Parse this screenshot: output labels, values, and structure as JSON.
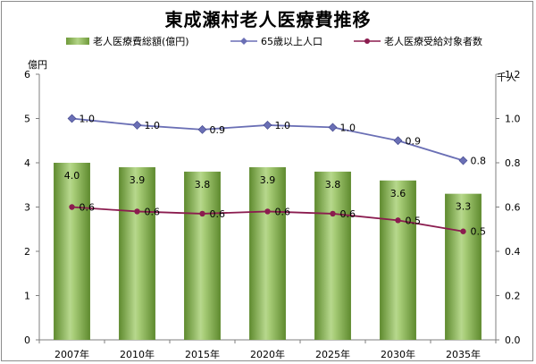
{
  "chart_data": {
    "type": "bar",
    "title": "東成瀬村老人医療費推移",
    "categories": [
      "2007年",
      "2010年",
      "2015年",
      "2020年",
      "2025年",
      "2030年",
      "2035年"
    ],
    "left_axis": {
      "unit_label": "億円",
      "ylim": [
        0,
        6
      ],
      "ticks": [
        "0",
        "1",
        "2",
        "3",
        "4",
        "5",
        "6"
      ]
    },
    "right_axis": {
      "unit_label": "千人",
      "ylim": [
        0,
        1.2
      ],
      "ticks": [
        "0.0",
        "0.2",
        "0.4",
        "0.6",
        "0.8",
        "1.0",
        "1.2"
      ]
    },
    "series": [
      {
        "name": "老人医療費総額(億円)",
        "kind": "bar",
        "axis": "left",
        "color": "#8fb858",
        "values": [
          4.0,
          3.9,
          3.8,
          3.9,
          3.8,
          3.6,
          3.3
        ],
        "labels": [
          "4.0",
          "3.9",
          "3.8",
          "3.9",
          "3.8",
          "3.6",
          "3.3"
        ]
      },
      {
        "name": "65歳以上人口",
        "kind": "line",
        "axis": "right",
        "color": "#6a6fb5",
        "marker": "diamond",
        "values": [
          1.0,
          0.97,
          0.95,
          0.97,
          0.96,
          0.9,
          0.81
        ],
        "labels": [
          "1.0",
          "1.0",
          "0.9",
          "1.0",
          "1.0",
          "0.9",
          "0.8"
        ]
      },
      {
        "name": "老人医療受給対象者数",
        "kind": "line",
        "axis": "right",
        "color": "#8b1c4f",
        "marker": "circle",
        "values": [
          0.6,
          0.58,
          0.57,
          0.58,
          0.57,
          0.54,
          0.49
        ],
        "labels": [
          "0.6",
          "0.6",
          "0.6",
          "0.6",
          "0.6",
          "0.5",
          "0.5"
        ]
      }
    ],
    "grid": false,
    "legend_position": "top"
  }
}
